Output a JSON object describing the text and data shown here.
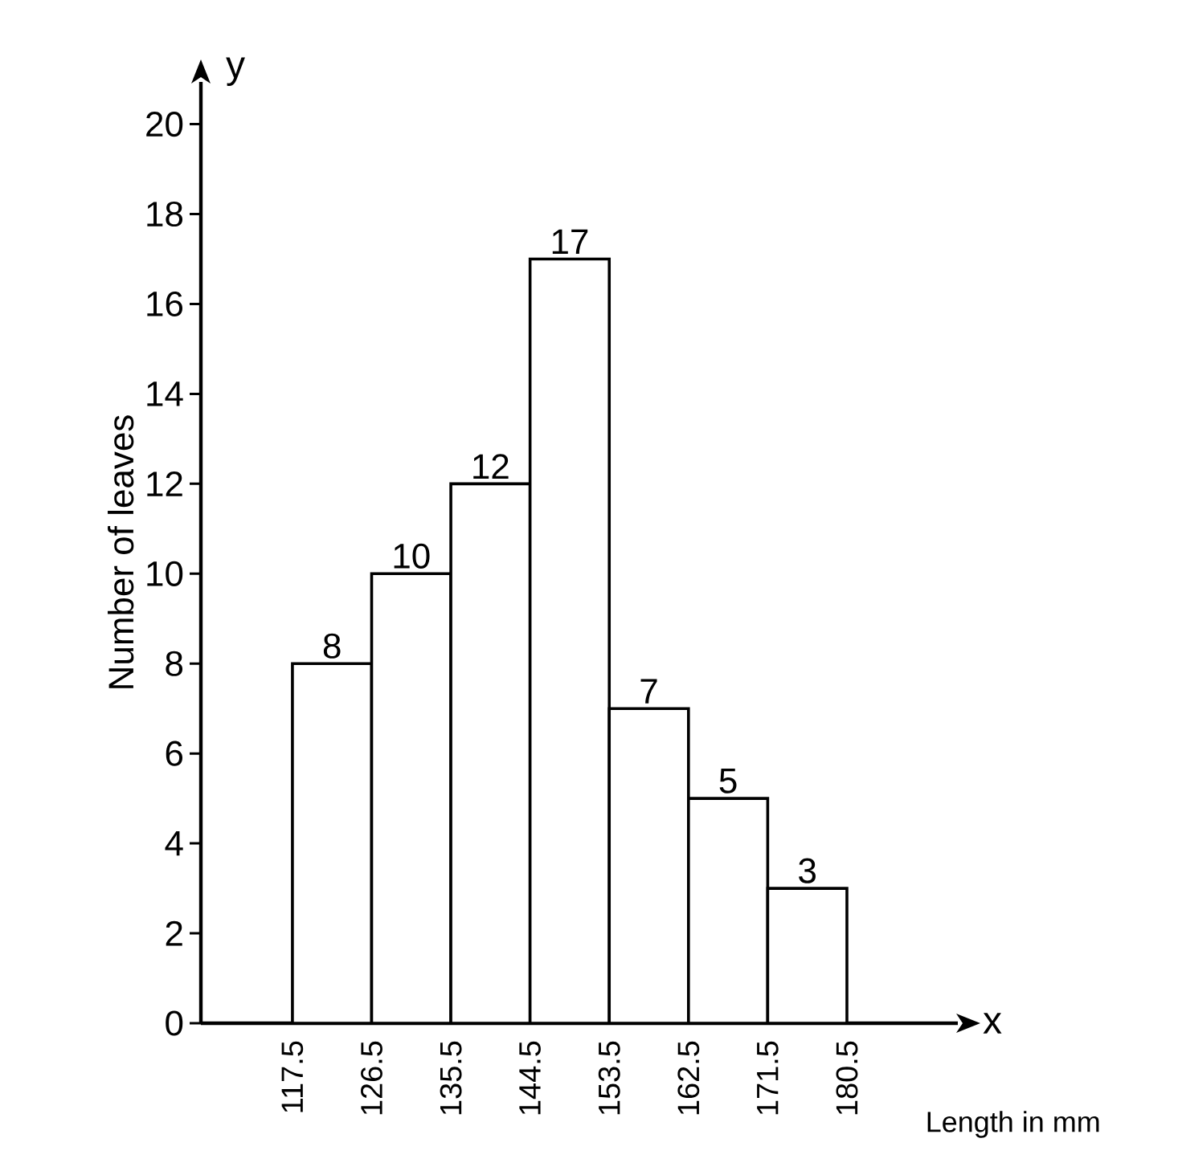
{
  "chart_data": {
    "type": "histogram",
    "bins": [
      117.5,
      126.5,
      135.5,
      144.5,
      153.5,
      162.5,
      171.5,
      180.5
    ],
    "values": [
      8,
      10,
      12,
      17,
      7,
      5,
      3
    ],
    "color": "#ffffff",
    "data_labels": true,
    "xlabel": "Length in mm",
    "ylabel": "Number of leaves",
    "annotations": [
      "x",
      "y"
    ],
    "xlim": [
      107.1,
      193.1
    ],
    "ylim": [
      0,
      20.94
    ],
    "xticks": [
      117.5,
      126.5,
      135.5,
      144.5,
      153.5,
      162.5,
      171.5,
      180.5
    ],
    "yticks": [
      0,
      2,
      4,
      6,
      8,
      10,
      12,
      14,
      16,
      18,
      20
    ],
    "grid": false
  }
}
